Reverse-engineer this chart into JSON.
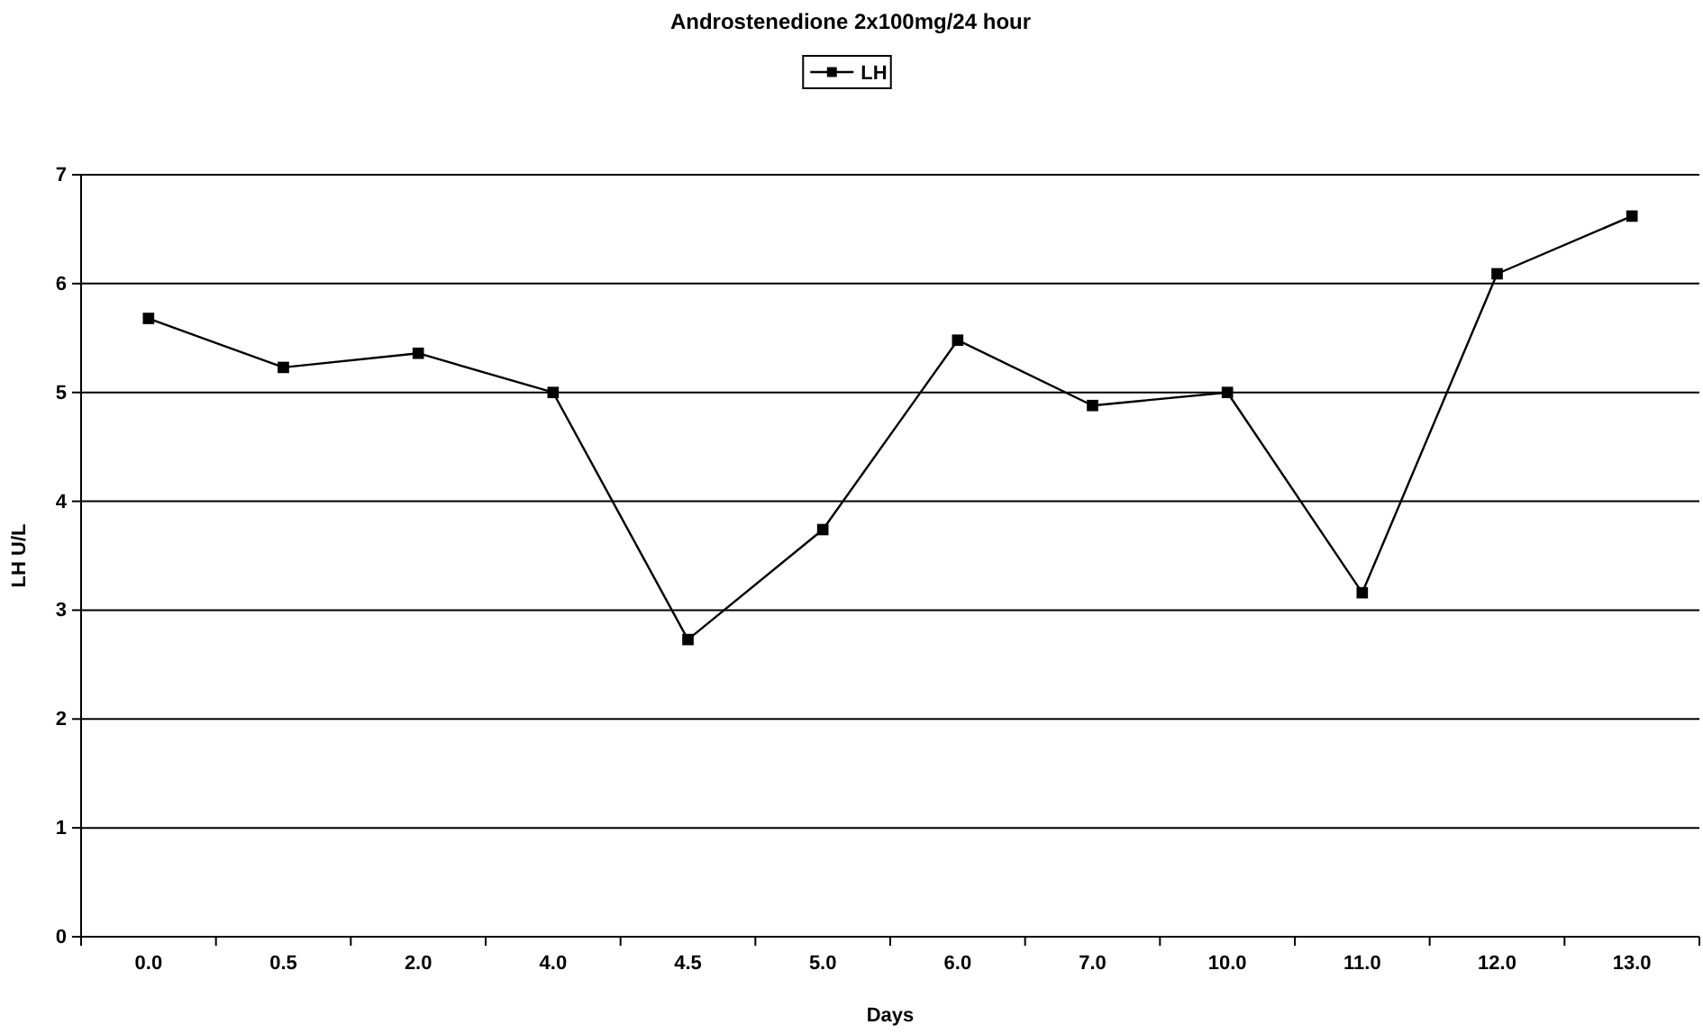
{
  "chart_data": {
    "type": "line",
    "title": "Androstenedione 2x100mg/24 hour",
    "xlabel": "Days",
    "ylabel": "LH  U/L",
    "categories": [
      "0.0",
      "0.5",
      "2.0",
      "4.0",
      "4.5",
      "5.0",
      "6.0",
      "7.0",
      "10.0",
      "11.0",
      "12.0",
      "13.0"
    ],
    "series": [
      {
        "name": "LH",
        "color": "#000000",
        "values": [
          5.68,
          5.23,
          5.36,
          5.0,
          2.73,
          3.74,
          5.48,
          4.88,
          5.0,
          3.16,
          6.09,
          6.62
        ]
      }
    ],
    "ylim": [
      0,
      7
    ],
    "yticks": [
      0,
      1,
      2,
      3,
      4,
      5,
      6,
      7
    ],
    "grid": "y",
    "legend": "top",
    "marker": "square",
    "line_style": "solid"
  }
}
